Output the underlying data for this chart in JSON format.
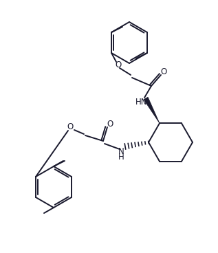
{
  "background_color": "#ffffff",
  "line_color": "#1a1a2e",
  "line_width": 1.4,
  "figsize": [
    3.17,
    3.68
  ],
  "dpi": 100,
  "xlim": [
    0,
    317
  ],
  "ylim": [
    0,
    368
  ]
}
